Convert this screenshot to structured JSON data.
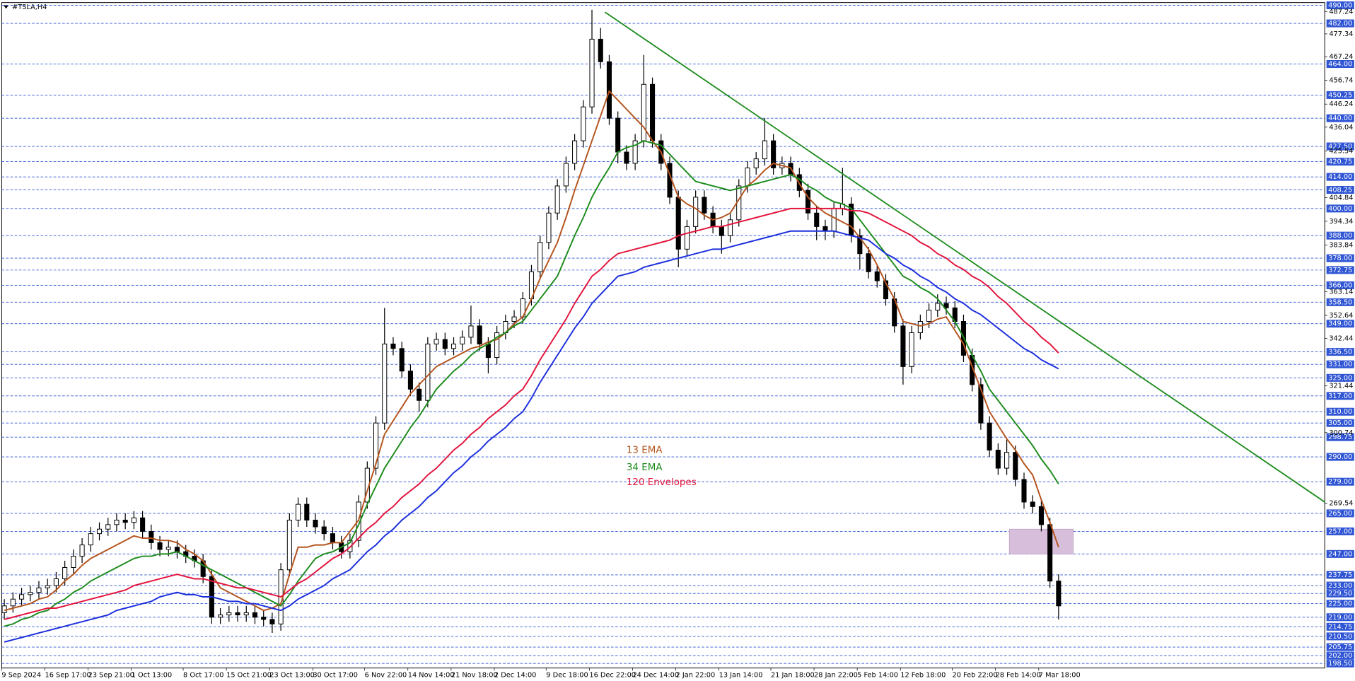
{
  "chart_data": {
    "type": "candlestick",
    "title": "#TSLA,H4",
    "ylim": [
      196.5,
      491.2
    ],
    "categories": [
      "9 Sep 2024",
      null,
      null,
      null,
      null,
      "16 Sep 17:00",
      null,
      null,
      null,
      null,
      "23 Sep 21:00",
      null,
      null,
      null,
      null,
      "1 Oct 13:00",
      null,
      null,
      null,
      null,
      null,
      "8 Oct 17:00",
      null,
      null,
      null,
      null,
      "15 Oct 21:00",
      null,
      null,
      null,
      null,
      "23 Oct 13:00",
      null,
      null,
      null,
      null,
      "30 Oct 17:00",
      null,
      null,
      null,
      null,
      null,
      "6 Nov 22:00",
      null,
      null,
      null,
      null,
      "14 Nov 14:00",
      null,
      null,
      null,
      null,
      "21 Nov 18:00",
      null,
      null,
      null,
      null,
      "2 Dec 14:00",
      null,
      null,
      null,
      null,
      null,
      "9 Dec 18:00",
      null,
      null,
      null,
      null,
      "16 Dec 22:00",
      null,
      null,
      null,
      null,
      "24 Dec 14:00",
      null,
      null,
      null,
      null,
      "2 Jan 22:00",
      null,
      null,
      null,
      null,
      "13 Jan 14:00",
      null,
      null,
      null,
      null,
      null,
      "21 Jan 18:00",
      null,
      null,
      null,
      null,
      "28 Jan 22:00",
      null,
      null,
      null,
      null,
      "5 Feb 14:00",
      null,
      null,
      null,
      null,
      "12 Feb 18:00",
      null,
      null,
      null,
      null,
      null,
      "20 Feb 22:00",
      null,
      null,
      null,
      null,
      "28 Feb 14:00",
      null,
      null,
      null,
      null,
      "7 Mar 18:00",
      null,
      null
    ],
    "candles": {
      "open": [
        221,
        224,
        227,
        229,
        230,
        232,
        233,
        236,
        241,
        246,
        251,
        256,
        258,
        260,
        262,
        261,
        263,
        257,
        252,
        249,
        250,
        248,
        246,
        244,
        237,
        219,
        220,
        221,
        220,
        221,
        219,
        218,
        216,
        240,
        262,
        269,
        262,
        259,
        256,
        252,
        248,
        253,
        270,
        285,
        305,
        340,
        338,
        328,
        320,
        315,
        340,
        342,
        338,
        340,
        343,
        348,
        340,
        334,
        345,
        350,
        352,
        360,
        372,
        385,
        398,
        410,
        420,
        430,
        445,
        475,
        465,
        440,
        425,
        420,
        430,
        455,
        430,
        420,
        405,
        382,
        392,
        405,
        398,
        392,
        388,
        395,
        410,
        418,
        422,
        430,
        418,
        420,
        415,
        408,
        398,
        392,
        390,
        400,
        402,
        388,
        380,
        372,
        368,
        360,
        348,
        330,
        345,
        350,
        355,
        358,
        356,
        350,
        335,
        322,
        305,
        293,
        285,
        292,
        280,
        270,
        268,
        260,
        235
      ],
      "high": [
        227,
        230,
        232,
        233,
        235,
        236,
        239,
        244,
        249,
        254,
        259,
        261,
        263,
        265,
        265,
        266,
        266,
        260,
        255,
        253,
        253,
        251,
        249,
        247,
        240,
        223,
        224,
        224,
        224,
        224,
        222,
        221,
        243,
        265,
        272,
        272,
        265,
        262,
        259,
        255,
        256,
        273,
        288,
        308,
        356,
        343,
        341,
        331,
        323,
        343,
        345,
        345,
        343,
        346,
        357,
        351,
        343,
        348,
        353,
        355,
        363,
        375,
        388,
        401,
        413,
        423,
        433,
        448,
        488,
        480,
        468,
        443,
        428,
        433,
        468,
        458,
        433,
        423,
        408,
        395,
        408,
        408,
        401,
        395,
        398,
        413,
        421,
        425,
        440,
        433,
        423,
        423,
        418,
        411,
        401,
        395,
        403,
        418,
        405,
        391,
        383,
        375,
        371,
        363,
        351,
        348,
        353,
        358,
        362,
        361,
        359,
        353,
        338,
        325,
        308,
        296,
        298,
        295,
        283,
        273,
        271,
        263,
        238
      ],
      "low": [
        218,
        221,
        224,
        226,
        227,
        229,
        230,
        233,
        238,
        243,
        248,
        253,
        255,
        257,
        258,
        258,
        254,
        249,
        246,
        246,
        245,
        243,
        241,
        234,
        216,
        216,
        217,
        217,
        217,
        216,
        215,
        212,
        213,
        237,
        259,
        259,
        256,
        253,
        249,
        245,
        245,
        250,
        267,
        282,
        302,
        335,
        325,
        317,
        310,
        312,
        337,
        335,
        335,
        337,
        340,
        337,
        327,
        331,
        342,
        347,
        349,
        357,
        369,
        382,
        395,
        407,
        417,
        427,
        442,
        462,
        437,
        420,
        417,
        417,
        427,
        427,
        417,
        402,
        374,
        379,
        389,
        395,
        389,
        380,
        385,
        392,
        407,
        415,
        419,
        415,
        415,
        412,
        405,
        395,
        386,
        386,
        387,
        397,
        385,
        373,
        369,
        365,
        357,
        345,
        322,
        327,
        342,
        347,
        352,
        353,
        347,
        332,
        319,
        302,
        290,
        282,
        282,
        277,
        267,
        265,
        257,
        232,
        218
      ],
      "close": [
        224,
        227,
        229,
        230,
        232,
        233,
        236,
        241,
        246,
        251,
        256,
        258,
        260,
        262,
        261,
        263,
        257,
        252,
        249,
        250,
        248,
        246,
        244,
        237,
        219,
        220,
        221,
        220,
        221,
        219,
        218,
        216,
        240,
        262,
        269,
        262,
        259,
        256,
        252,
        248,
        253,
        270,
        285,
        305,
        340,
        338,
        328,
        320,
        315,
        340,
        342,
        338,
        340,
        343,
        348,
        340,
        334,
        345,
        350,
        352,
        360,
        372,
        385,
        398,
        410,
        420,
        430,
        445,
        475,
        465,
        440,
        425,
        420,
        430,
        455,
        430,
        420,
        405,
        382,
        392,
        405,
        398,
        392,
        388,
        395,
        410,
        418,
        422,
        430,
        418,
        420,
        415,
        408,
        398,
        392,
        390,
        400,
        402,
        388,
        380,
        372,
        368,
        360,
        348,
        330,
        345,
        350,
        355,
        358,
        356,
        350,
        335,
        322,
        305,
        293,
        285,
        292,
        280,
        270,
        268,
        260,
        235,
        224
      ]
    },
    "lines": [
      {
        "name": "13 EMA",
        "color": "#b4541e",
        "values": [
          222,
          223,
          224,
          225,
          227,
          228,
          231,
          235,
          238,
          242,
          245,
          247,
          249,
          251,
          253,
          255,
          254,
          254,
          253,
          253,
          252,
          249,
          247,
          244,
          238,
          232,
          230,
          228,
          226,
          224,
          222,
          223,
          225,
          238,
          250,
          250,
          251,
          251,
          252,
          252,
          257,
          262,
          275,
          287,
          300,
          306,
          312,
          318,
          322,
          326,
          330,
          332,
          334,
          336,
          338,
          339,
          341,
          342,
          345,
          349,
          352,
          360,
          369,
          377,
          385,
          396,
          408,
          419,
          430,
          441,
          452,
          448,
          444,
          440,
          436,
          430,
          425,
          415,
          405,
          402,
          400,
          397,
          395,
          396,
          398,
          404,
          410,
          413,
          417,
          420,
          419,
          418,
          411,
          405,
          401,
          398,
          396,
          394,
          392,
          387,
          382,
          375,
          367,
          360,
          350,
          349,
          348,
          349,
          351,
          352,
          346,
          340,
          330,
          320,
          310,
          304,
          298,
          293,
          287,
          282,
          271,
          261,
          250
        ]
      },
      {
        "name": "34 EMA",
        "color": "#1e8c1e",
        "values": [
          215,
          216,
          218,
          219,
          221,
          222,
          225,
          227,
          230,
          232,
          235,
          237,
          239,
          241,
          243,
          245,
          246,
          246,
          247,
          247,
          248,
          246,
          244,
          242,
          240,
          238,
          236,
          234,
          232,
          230,
          228,
          226,
          224,
          229,
          235,
          240,
          245,
          247,
          248,
          250,
          252,
          260,
          269,
          277,
          285,
          291,
          297,
          303,
          308,
          314,
          320,
          324,
          328,
          331,
          335,
          338,
          340,
          343,
          345,
          348,
          350,
          355,
          360,
          365,
          370,
          379,
          388,
          396,
          405,
          412,
          418,
          425,
          427,
          428,
          430,
          429,
          428,
          424,
          420,
          416,
          412,
          411,
          410,
          409,
          408,
          409,
          410,
          411,
          412,
          413,
          414,
          415,
          413,
          410,
          408,
          405,
          403,
          402,
          400,
          395,
          390,
          385,
          380,
          375,
          370,
          368,
          365,
          363,
          360,
          355,
          350,
          343,
          335,
          328,
          320,
          315,
          310,
          305,
          300,
          295,
          289,
          284,
          278
        ]
      },
      {
        "name": "120 Envelopes",
        "color": "#e3143c",
        "values": [
          218,
          219,
          220,
          221,
          222,
          223,
          223,
          224,
          225,
          226,
          227,
          228,
          229,
          230,
          231,
          233,
          234,
          235,
          236,
          237,
          238,
          237,
          236,
          236,
          235,
          234,
          233,
          232,
          232,
          231,
          230,
          229,
          228,
          231,
          234,
          236,
          239,
          242,
          245,
          247,
          250,
          254,
          258,
          261,
          265,
          268,
          272,
          275,
          278,
          282,
          285,
          289,
          293,
          296,
          300,
          303,
          307,
          310,
          313,
          317,
          320,
          326,
          333,
          339,
          345,
          351,
          358,
          364,
          370,
          373,
          377,
          380,
          381,
          382,
          383,
          384,
          385,
          386,
          388,
          389,
          390,
          391,
          392,
          392,
          393,
          394,
          395,
          396,
          397,
          398,
          399,
          400,
          400,
          400,
          400,
          400,
          400,
          400,
          399,
          399,
          398,
          396,
          394,
          392,
          390,
          388,
          385,
          383,
          380,
          378,
          375,
          373,
          370,
          368,
          365,
          361,
          358,
          354,
          350,
          347,
          343,
          340,
          336
        ]
      },
      {
        "color": "#1c2fdc",
        "values": [
          208,
          209,
          210,
          211,
          212,
          213,
          214,
          215,
          216,
          217,
          218,
          219,
          220,
          222,
          223,
          224,
          225,
          226,
          228,
          229,
          230,
          229,
          229,
          228,
          228,
          227,
          226,
          226,
          225,
          225,
          224,
          223,
          222,
          224,
          227,
          229,
          231,
          233,
          236,
          238,
          240,
          244,
          248,
          251,
          255,
          258,
          262,
          265,
          268,
          272,
          275,
          279,
          283,
          286,
          290,
          293,
          297,
          300,
          303,
          307,
          310,
          316,
          323,
          329,
          335,
          341,
          347,
          352,
          358,
          362,
          366,
          370,
          371,
          372,
          374,
          375,
          376,
          377,
          378,
          379,
          380,
          381,
          382,
          382,
          383,
          384,
          385,
          386,
          387,
          388,
          389,
          390,
          390,
          390,
          390,
          390,
          390,
          389,
          388,
          387,
          386,
          383,
          380,
          378,
          375,
          373,
          370,
          368,
          365,
          363,
          360,
          358,
          355,
          353,
          350,
          347,
          344,
          341,
          338,
          336,
          333,
          331,
          329
        ]
      }
    ],
    "trendline": {
      "values": [
        487,
        270
      ],
      "color": "#1e8c1e"
    },
    "zone": {
      "values": [
        258,
        247
      ],
      "color": "#d7bfdc"
    },
    "levels": [
      {
        "value": 490,
        "label": "490.00"
      },
      {
        "value": 482,
        "label": "482.00"
      },
      {
        "value": 464,
        "label": "464.00"
      },
      {
        "value": 450.25,
        "label": "450.25"
      },
      {
        "value": 440,
        "label": "440.00"
      },
      {
        "value": 427.5,
        "label": "427.50"
      },
      {
        "value": 420.75,
        "label": "420.75"
      },
      {
        "value": 414,
        "label": "414.00"
      },
      {
        "value": 408.25,
        "label": "408.25"
      },
      {
        "value": 400,
        "label": "400.00"
      },
      {
        "value": 388,
        "label": "388.00"
      },
      {
        "value": 378,
        "label": "378.00"
      },
      {
        "value": 372.75,
        "label": "372.75"
      },
      {
        "value": 366,
        "label": "366.00"
      },
      {
        "value": 358.5,
        "label": "358.50"
      },
      {
        "value": 349,
        "label": "349.00"
      },
      {
        "value": 336.5,
        "label": "336.50"
      },
      {
        "value": 331,
        "label": "331.00"
      },
      {
        "value": 325,
        "label": "325.00"
      },
      {
        "value": 317,
        "label": "317.00"
      },
      {
        "value": 310,
        "label": "310.00"
      },
      {
        "value": 305,
        "label": "305.00"
      },
      {
        "value": 298.75,
        "label": "298.75"
      },
      {
        "value": 290,
        "label": "290.00"
      },
      {
        "value": 279,
        "label": "279.00"
      },
      {
        "value": 265,
        "label": "265.00"
      },
      {
        "value": 257,
        "label": "257.00"
      },
      {
        "value": 247,
        "label": "247.00"
      },
      {
        "value": 237.75,
        "label": "237.75"
      },
      {
        "value": 233,
        "label": "233.00"
      },
      {
        "value": 229.5,
        "label": "229.50"
      },
      {
        "value": 225,
        "label": "225.00"
      },
      {
        "value": 219,
        "label": "219.00"
      },
      {
        "value": 214.75,
        "label": "214.75"
      },
      {
        "value": 210.5,
        "label": "210.50"
      },
      {
        "value": 205.75,
        "label": "205.75"
      },
      {
        "value": 202,
        "label": "202.00"
      },
      {
        "value": 198.5,
        "label": "198.50"
      }
    ],
    "level_color": "#2f55d4",
    "yticks": [
      487.24,
      477.34,
      467.24,
      456.74,
      446.24,
      436.04,
      425.54,
      404.84,
      394.34,
      383.84,
      363.14,
      352.64,
      342.44,
      321.44,
      300.74,
      269.54
    ]
  }
}
